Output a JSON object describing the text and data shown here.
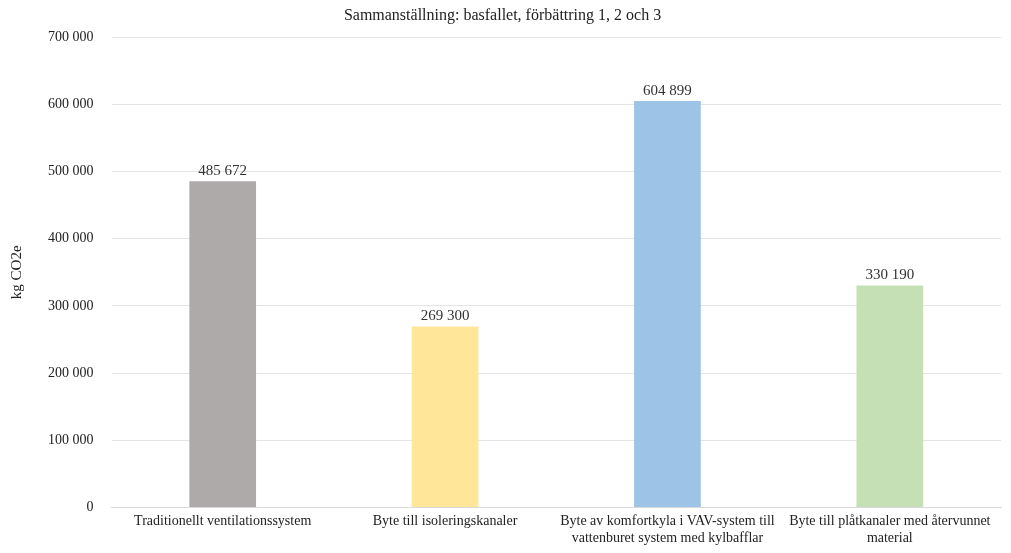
{
  "chart_data": {
    "type": "bar",
    "title": "Sammanställning: basfallet, förbättring 1, 2 och 3",
    "ylabel": "kg CO2e",
    "categories": [
      "Traditionellt ventilationssystem",
      "Byte till isoleringskanaler",
      "Byte av komfortkyla i VAV-system till vattenburet system med kylbafflar",
      "Byte till plåtkanaler med återvunnet material"
    ],
    "values": [
      485672,
      269300,
      604899,
      330190
    ],
    "colors": [
      "#aeaaaa",
      "#ffe699",
      "#9dc3e6",
      "#c5e0b4"
    ],
    "value_labels": [
      "485 672",
      "269 300",
      "604 899",
      "330 190"
    ],
    "ylim": [
      0,
      700000
    ],
    "yticks": [
      {
        "value": 0,
        "label": "0"
      },
      {
        "value": 100000,
        "label": "100 000"
      },
      {
        "value": 200000,
        "label": "200 000"
      },
      {
        "value": 300000,
        "label": "300 000"
      },
      {
        "value": 400000,
        "label": "400 000"
      },
      {
        "value": 500000,
        "label": "500 000"
      },
      {
        "value": 600000,
        "label": "600 000"
      },
      {
        "value": 700000,
        "label": "700 000"
      }
    ],
    "grid": "y",
    "legend": false
  }
}
